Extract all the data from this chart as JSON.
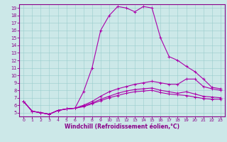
{
  "xlabel": "Windchill (Refroidissement éolien,°C)",
  "bg_color": "#cce8e8",
  "line_color": "#aa00aa",
  "xlim": [
    -0.5,
    23.5
  ],
  "ylim": [
    4.5,
    19.5
  ],
  "xticks": [
    0,
    1,
    2,
    3,
    4,
    5,
    6,
    7,
    8,
    9,
    10,
    11,
    12,
    13,
    14,
    15,
    16,
    17,
    18,
    19,
    20,
    21,
    22,
    23
  ],
  "yticks": [
    5,
    6,
    7,
    8,
    9,
    10,
    11,
    12,
    13,
    14,
    15,
    16,
    17,
    18,
    19
  ],
  "series": [
    [
      6.5,
      5.2,
      5.0,
      4.8,
      5.3,
      5.5,
      5.6,
      7.8,
      11.0,
      16.0,
      18.0,
      19.2,
      19.0,
      18.5,
      19.2,
      19.0,
      15.0,
      12.5,
      12.0,
      11.2,
      10.5,
      9.5,
      8.4,
      8.2
    ],
    [
      6.5,
      5.2,
      5.0,
      4.8,
      5.3,
      5.5,
      5.6,
      6.0,
      6.5,
      7.2,
      7.8,
      8.2,
      8.5,
      8.8,
      9.0,
      9.2,
      9.0,
      8.8,
      8.8,
      9.5,
      9.5,
      8.5,
      8.2,
      8.0
    ],
    [
      6.5,
      5.2,
      5.0,
      4.8,
      5.3,
      5.5,
      5.6,
      5.9,
      6.3,
      6.8,
      7.2,
      7.6,
      7.9,
      8.1,
      8.2,
      8.3,
      8.0,
      7.8,
      7.6,
      7.8,
      7.5,
      7.2,
      7.1,
      7.0
    ],
    [
      6.5,
      5.2,
      5.0,
      4.8,
      5.3,
      5.5,
      5.6,
      5.8,
      6.2,
      6.6,
      7.0,
      7.3,
      7.6,
      7.8,
      7.9,
      8.0,
      7.7,
      7.5,
      7.4,
      7.3,
      7.1,
      6.9,
      6.8,
      6.8
    ]
  ]
}
